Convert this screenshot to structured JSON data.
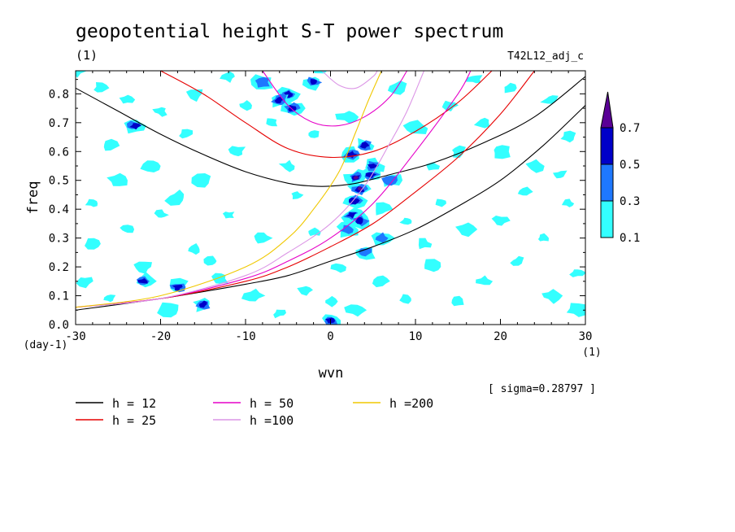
{
  "chart_data": {
    "type": "contour",
    "title": "geopotential height S-T power spectrum",
    "subtitle_left": "(1)",
    "subtitle_right": "T42L12_adj_c",
    "xlabel": "wvn",
    "ylabel": "freq",
    "x_unit": "(1)",
    "y_unit": "(day-1)",
    "xlim": [
      -30,
      30
    ],
    "ylim": [
      0,
      0.88
    ],
    "x_ticks": [
      "-30",
      "-20",
      "-10",
      "0",
      "10",
      "20",
      "30"
    ],
    "x_tick_values": [
      -30,
      -20,
      -10,
      0,
      10,
      20,
      30
    ],
    "y_ticks": [
      "0.0",
      "0.1",
      "0.2",
      "0.3",
      "0.4",
      "0.5",
      "0.6",
      "0.7",
      "0.8"
    ],
    "y_tick_values": [
      0,
      0.1,
      0.2,
      0.3,
      0.4,
      0.5,
      0.6,
      0.7,
      0.8
    ],
    "sigma_text": "[ sigma=0.28797 ]",
    "colorbar": {
      "levels": [
        "0.1",
        "0.3",
        "0.5",
        "0.7"
      ],
      "level_values": [
        0.1,
        0.3,
        0.5,
        0.7
      ],
      "colors": [
        "#33ffff",
        "#1e78ff",
        "#0000c8",
        "#5a0096"
      ]
    },
    "dispersion_legend": [
      {
        "label": "h = 12",
        "color": "#000000"
      },
      {
        "label": "h = 25",
        "color": "#e60000"
      },
      {
        "label": "h = 50",
        "color": "#e600c8"
      },
      {
        "label": "h =100",
        "color": "#dc96e6"
      },
      {
        "label": "h =200",
        "color": "#f0c800"
      }
    ],
    "dispersion_curves": [
      {
        "h": 12,
        "color": "#000000",
        "kind": "lower",
        "points": [
          [
            -30,
            0.05
          ],
          [
            -20,
            0.09
          ],
          [
            -10,
            0.14
          ],
          [
            -5,
            0.17
          ],
          [
            0,
            0.22
          ],
          [
            5,
            0.27
          ],
          [
            10,
            0.33
          ],
          [
            15,
            0.41
          ],
          [
            20,
            0.5
          ],
          [
            25,
            0.62
          ],
          [
            30,
            0.76
          ]
        ]
      },
      {
        "h": 12,
        "color": "#000000",
        "kind": "upper",
        "points": [
          [
            -30,
            0.82
          ],
          [
            -25,
            0.74
          ],
          [
            -20,
            0.66
          ],
          [
            -15,
            0.59
          ],
          [
            -10,
            0.53
          ],
          [
            -5,
            0.49
          ],
          [
            -2,
            0.48
          ],
          [
            0,
            0.48
          ],
          [
            3,
            0.49
          ],
          [
            7,
            0.52
          ],
          [
            12,
            0.56
          ],
          [
            18,
            0.63
          ],
          [
            24,
            0.72
          ],
          [
            30,
            0.86
          ]
        ]
      },
      {
        "h": 25,
        "color": "#e60000",
        "kind": "lower",
        "points": [
          [
            -30,
            0.06
          ],
          [
            -20,
            0.09
          ],
          [
            -10,
            0.15
          ],
          [
            -5,
            0.2
          ],
          [
            0,
            0.27
          ],
          [
            5,
            0.35
          ],
          [
            10,
            0.46
          ],
          [
            15,
            0.58
          ],
          [
            20,
            0.73
          ],
          [
            24,
            0.88
          ]
        ]
      },
      {
        "h": 25,
        "color": "#e60000",
        "kind": "upper",
        "points": [
          [
            -20,
            0.88
          ],
          [
            -15,
            0.8
          ],
          [
            -10,
            0.7
          ],
          [
            -5,
            0.61
          ],
          [
            0,
            0.58
          ],
          [
            5,
            0.6
          ],
          [
            10,
            0.67
          ],
          [
            15,
            0.77
          ],
          [
            19,
            0.88
          ]
        ]
      },
      {
        "h": 50,
        "color": "#e600c8",
        "kind": "lower",
        "points": [
          [
            -30,
            0.06
          ],
          [
            -20,
            0.09
          ],
          [
            -10,
            0.16
          ],
          [
            -5,
            0.22
          ],
          [
            0,
            0.3
          ],
          [
            5,
            0.42
          ],
          [
            10,
            0.6
          ],
          [
            15,
            0.8
          ],
          [
            16.5,
            0.88
          ]
        ]
      },
      {
        "h": 50,
        "color": "#e600c8",
        "kind": "upper",
        "points": [
          [
            -8,
            0.88
          ],
          [
            -5,
            0.76
          ],
          [
            -2,
            0.7
          ],
          [
            1,
            0.69
          ],
          [
            4,
            0.72
          ],
          [
            7,
            0.79
          ],
          [
            9,
            0.88
          ]
        ]
      },
      {
        "h": 100,
        "color": "#dc96e6",
        "kind": "lower",
        "points": [
          [
            -30,
            0.06
          ],
          [
            -20,
            0.09
          ],
          [
            -10,
            0.17
          ],
          [
            -5,
            0.25
          ],
          [
            0,
            0.35
          ],
          [
            4,
            0.48
          ],
          [
            7,
            0.63
          ],
          [
            9,
            0.74
          ],
          [
            11,
            0.88
          ]
        ]
      },
      {
        "h": 100,
        "color": "#dc96e6",
        "kind": "upper",
        "points": [
          [
            -1,
            0.88
          ],
          [
            1,
            0.83
          ],
          [
            3,
            0.82
          ],
          [
            5,
            0.86
          ],
          [
            5.5,
            0.88
          ]
        ]
      },
      {
        "h": 200,
        "color": "#f0c800",
        "kind": "lower",
        "points": [
          [
            -30,
            0.06
          ],
          [
            -20,
            0.1
          ],
          [
            -10,
            0.2
          ],
          [
            -5,
            0.3
          ],
          [
            -2,
            0.4
          ],
          [
            1,
            0.53
          ],
          [
            3,
            0.67
          ],
          [
            4.5,
            0.78
          ],
          [
            6,
            0.88
          ]
        ]
      }
    ],
    "spectral_peaks": [
      {
        "x": 3,
        "y": 0.51,
        "level": 0.7
      },
      {
        "x": 3.5,
        "y": 0.47,
        "level": 0.7
      },
      {
        "x": 4.8,
        "y": 0.52,
        "level": 0.5
      },
      {
        "x": 2.8,
        "y": 0.43,
        "level": 0.5
      },
      {
        "x": 2.5,
        "y": 0.38,
        "level": 0.5
      },
      {
        "x": 3.5,
        "y": 0.36,
        "level": 0.5
      },
      {
        "x": -5,
        "y": 0.8,
        "level": 0.5
      },
      {
        "x": -6,
        "y": 0.78,
        "level": 0.5
      },
      {
        "x": -4.5,
        "y": 0.75,
        "level": 0.5
      },
      {
        "x": -2,
        "y": 0.84,
        "level": 0.5
      },
      {
        "x": -8,
        "y": 0.84,
        "level": 0.3
      },
      {
        "x": 4,
        "y": 0.62,
        "level": 0.5
      },
      {
        "x": 2.5,
        "y": 0.59,
        "level": 0.5
      },
      {
        "x": 7,
        "y": 0.5,
        "level": 0.3
      },
      {
        "x": 5,
        "y": 0.55,
        "level": 0.5
      },
      {
        "x": -22,
        "y": 0.15,
        "level": 0.5
      },
      {
        "x": -18,
        "y": 0.13,
        "level": 0.5
      },
      {
        "x": -15,
        "y": 0.07,
        "level": 0.5
      },
      {
        "x": -23,
        "y": 0.69,
        "level": 0.5
      },
      {
        "x": 0,
        "y": 0.015,
        "level": 0.5
      },
      {
        "x": -1,
        "y": 0.9,
        "level": 0.5
      },
      {
        "x": 4,
        "y": 0.25,
        "level": 0.3
      },
      {
        "x": 6,
        "y": 0.3,
        "level": 0.3
      },
      {
        "x": 2,
        "y": 0.33,
        "level": 0.3
      }
    ],
    "weak_patches": [
      [
        -27,
        0.82
      ],
      [
        -24,
        0.78
      ],
      [
        -20,
        0.74
      ],
      [
        -16,
        0.8
      ],
      [
        -12,
        0.86
      ],
      [
        -26,
        0.62
      ],
      [
        -21,
        0.55
      ],
      [
        -15,
        0.5
      ],
      [
        -11,
        0.6
      ],
      [
        -28,
        0.42
      ],
      [
        -24,
        0.33
      ],
      [
        -20,
        0.38
      ],
      [
        -16,
        0.26
      ],
      [
        -12,
        0.38
      ],
      [
        -29,
        0.15
      ],
      [
        -26,
        0.09
      ],
      [
        -22,
        0.2
      ],
      [
        -19,
        0.05
      ],
      [
        -13,
        0.16
      ],
      [
        -9,
        0.1
      ],
      [
        -6,
        0.04
      ],
      [
        -3,
        0.12
      ],
      [
        -8,
        0.3
      ],
      [
        -4,
        0.45
      ],
      [
        -2,
        0.32
      ],
      [
        1,
        0.2
      ],
      [
        0,
        0.08
      ],
      [
        3,
        0.05
      ],
      [
        6,
        0.15
      ],
      [
        9,
        0.09
      ],
      [
        12,
        0.2
      ],
      [
        15,
        0.08
      ],
      [
        18,
        0.15
      ],
      [
        22,
        0.22
      ],
      [
        26,
        0.1
      ],
      [
        29,
        0.18
      ],
      [
        9,
        0.36
      ],
      [
        13,
        0.42
      ],
      [
        16,
        0.33
      ],
      [
        20,
        0.36
      ],
      [
        25,
        0.3
      ],
      [
        28,
        0.42
      ],
      [
        10,
        0.68
      ],
      [
        14,
        0.76
      ],
      [
        17,
        0.85
      ],
      [
        21,
        0.82
      ],
      [
        26,
        0.78
      ],
      [
        28,
        0.65
      ],
      [
        20,
        0.6
      ],
      [
        24,
        0.55
      ],
      [
        15,
        0.6
      ],
      [
        8,
        0.82
      ],
      [
        2,
        0.72
      ],
      [
        -2,
        0.66
      ],
      [
        -7,
        0.7
      ],
      [
        -10,
        0.76
      ],
      [
        -17,
        0.66
      ],
      [
        -28,
        0.28
      ],
      [
        -18,
        0.44
      ],
      [
        6,
        0.4
      ],
      [
        11,
        0.28
      ],
      [
        23,
        0.46
      ],
      [
        27,
        0.52
      ],
      [
        -5,
        0.55
      ],
      [
        18,
        0.7
      ],
      [
        29,
        0.05
      ],
      [
        -30,
        0.88
      ],
      [
        -14,
        0.22
      ],
      [
        -25,
        0.5
      ],
      [
        12,
        0.55
      ]
    ]
  }
}
